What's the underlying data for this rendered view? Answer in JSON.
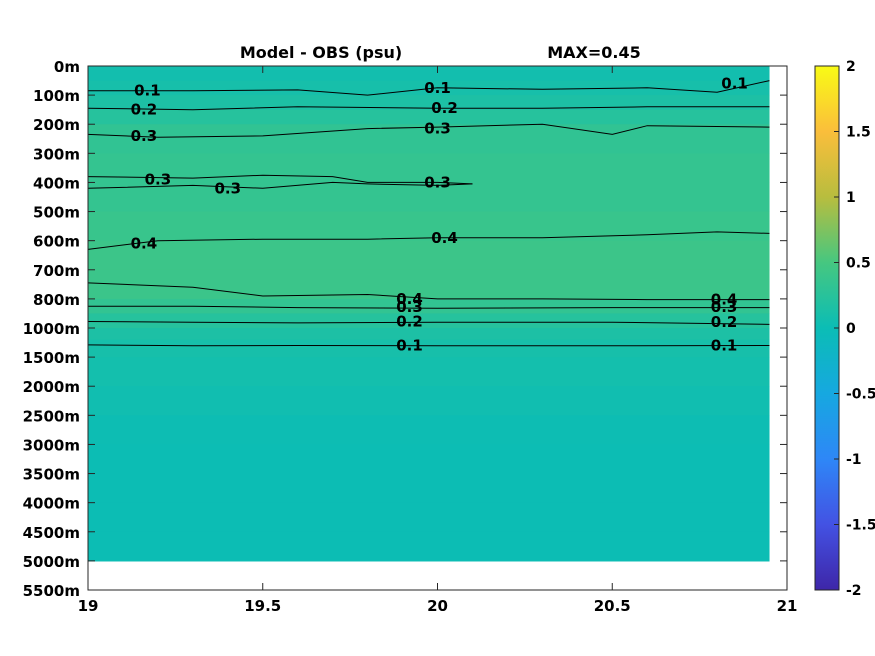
{
  "chart_data": {
    "type": "heatmap",
    "title": "Model - OBS (psu)",
    "annotation": "MAX=0.45",
    "xlabel": "",
    "ylabel": "",
    "xlim": [
      19,
      21
    ],
    "x_ticks": [
      "19",
      "19.5",
      "20",
      "20.5",
      "21"
    ],
    "x_tick_values": [
      19,
      19.5,
      20,
      20.5,
      21
    ],
    "y_ticks": [
      "0m",
      "100m",
      "200m",
      "300m",
      "400m",
      "500m",
      "600m",
      "700m",
      "800m",
      "1000m",
      "1500m",
      "2000m",
      "2500m",
      "3000m",
      "3500m",
      "4000m",
      "4500m",
      "5000m",
      "5500m"
    ],
    "y_tick_depths_m": [
      0,
      100,
      200,
      300,
      400,
      500,
      600,
      700,
      800,
      1000,
      1500,
      2000,
      2500,
      3000,
      3500,
      4000,
      4500,
      5000,
      5500
    ],
    "data_x_extent": [
      19,
      20.95
    ],
    "data_depth_extent_m": [
      0,
      5000
    ],
    "colorbar": {
      "colormap": "parula",
      "clim": [
        -2,
        2
      ],
      "ticks": [
        "2",
        "1.5",
        "1",
        "0.5",
        "0",
        "-0.5",
        "-1",
        "-1.5",
        "-2"
      ],
      "tick_values": [
        2,
        1.5,
        1,
        0.5,
        0,
        -0.5,
        -1,
        -1.5,
        -2
      ]
    },
    "depth_profile": {
      "depths_m": [
        0,
        50,
        100,
        150,
        200,
        300,
        400,
        500,
        600,
        700,
        800,
        900,
        1000,
        1200,
        1500,
        2000,
        2500,
        3000,
        3500,
        4000,
        4500,
        5000
      ],
      "values": [
        0.05,
        0.08,
        0.12,
        0.18,
        0.28,
        0.36,
        0.33,
        0.37,
        0.4,
        0.43,
        0.38,
        0.28,
        0.18,
        0.12,
        0.09,
        0.07,
        0.03,
        0.01,
        0.01,
        0.01,
        0.01,
        0.01
      ]
    },
    "contours": [
      {
        "level": 0.1,
        "x": [
          19,
          19.3,
          19.6,
          19.8,
          20,
          20.3,
          20.6,
          20.8,
          20.95
        ],
        "depth_m": [
          85,
          85,
          82,
          100,
          75,
          80,
          75,
          90,
          50
        ]
      },
      {
        "level": 0.2,
        "x": [
          19,
          19.3,
          19.6,
          20,
          20.3,
          20.6,
          20.95
        ],
        "depth_m": [
          145,
          150,
          140,
          145,
          145,
          140,
          140
        ]
      },
      {
        "level": 0.3,
        "x": [
          19,
          19.2,
          19.5,
          19.8,
          20,
          20.3,
          20.5,
          20.6,
          20.95
        ],
        "depth_m": [
          235,
          245,
          240,
          215,
          210,
          200,
          235,
          205,
          210
        ]
      },
      {
        "level": 0.3,
        "x": [
          19,
          19.3,
          19.5,
          19.7,
          19.8,
          20,
          20.1
        ],
        "depth_m": [
          380,
          385,
          375,
          380,
          400,
          400,
          405
        ]
      },
      {
        "level": 0.3,
        "x": [
          19,
          19.3,
          19.5,
          19.7,
          19.8,
          20,
          20.1
        ],
        "depth_m": [
          420,
          410,
          420,
          400,
          405,
          410,
          405
        ]
      },
      {
        "level": 0.4,
        "x": [
          19,
          19.2,
          19.5,
          19.8,
          20,
          20.3,
          20.6,
          20.8,
          20.95
        ],
        "depth_m": [
          630,
          600,
          595,
          595,
          590,
          590,
          580,
          570,
          575
        ]
      },
      {
        "level": 0.4,
        "x": [
          19,
          19.3,
          19.5,
          19.8,
          20,
          20.3,
          20.6,
          20.95
        ],
        "depth_m": [
          745,
          760,
          790,
          785,
          800,
          800,
          805,
          805
        ]
      },
      {
        "level": 0.3,
        "x": [
          19,
          19.3,
          19.6,
          20,
          20.5,
          20.95
        ],
        "depth_m": [
          850,
          850,
          860,
          865,
          860,
          860
        ]
      },
      {
        "level": 0.2,
        "x": [
          19,
          19.3,
          19.6,
          20,
          20.5,
          20.95
        ],
        "depth_m": [
          955,
          960,
          965,
          960,
          960,
          975
        ]
      },
      {
        "level": 0.1,
        "x": [
          19,
          19.3,
          19.6,
          20,
          20.5,
          20.95
        ],
        "depth_m": [
          1290,
          1305,
          1300,
          1305,
          1305,
          1300
        ]
      }
    ],
    "contour_labels": [
      {
        "text": "0.1",
        "x": 19.17,
        "depth_m": 85
      },
      {
        "text": "0.2",
        "x": 19.16,
        "depth_m": 150
      },
      {
        "text": "0.3",
        "x": 19.16,
        "depth_m": 240
      },
      {
        "text": "0.3",
        "x": 19.2,
        "depth_m": 390
      },
      {
        "text": "0.3",
        "x": 19.4,
        "depth_m": 420
      },
      {
        "text": "0.4",
        "x": 19.16,
        "depth_m": 610
      },
      {
        "text": "0.1",
        "x": 20,
        "depth_m": 75
      },
      {
        "text": "0.2",
        "x": 20.02,
        "depth_m": 145
      },
      {
        "text": "0.3",
        "x": 20,
        "depth_m": 215
      },
      {
        "text": "0.3",
        "x": 20,
        "depth_m": 400
      },
      {
        "text": "0.4",
        "x": 20.02,
        "depth_m": 590
      },
      {
        "text": "0.4",
        "x": 19.92,
        "depth_m": 800
      },
      {
        "text": "0.3",
        "x": 19.92,
        "depth_m": 855
      },
      {
        "text": "0.2",
        "x": 19.92,
        "depth_m": 955
      },
      {
        "text": "0.1",
        "x": 19.92,
        "depth_m": 1300
      },
      {
        "text": "0.1",
        "x": 20.85,
        "depth_m": 60
      },
      {
        "text": "0.4",
        "x": 20.82,
        "depth_m": 805
      },
      {
        "text": "0.3",
        "x": 20.82,
        "depth_m": 855
      },
      {
        "text": "0.2",
        "x": 20.82,
        "depth_m": 960
      },
      {
        "text": "0.1",
        "x": 20.82,
        "depth_m": 1300
      }
    ],
    "grid": false,
    "legend": "none"
  }
}
